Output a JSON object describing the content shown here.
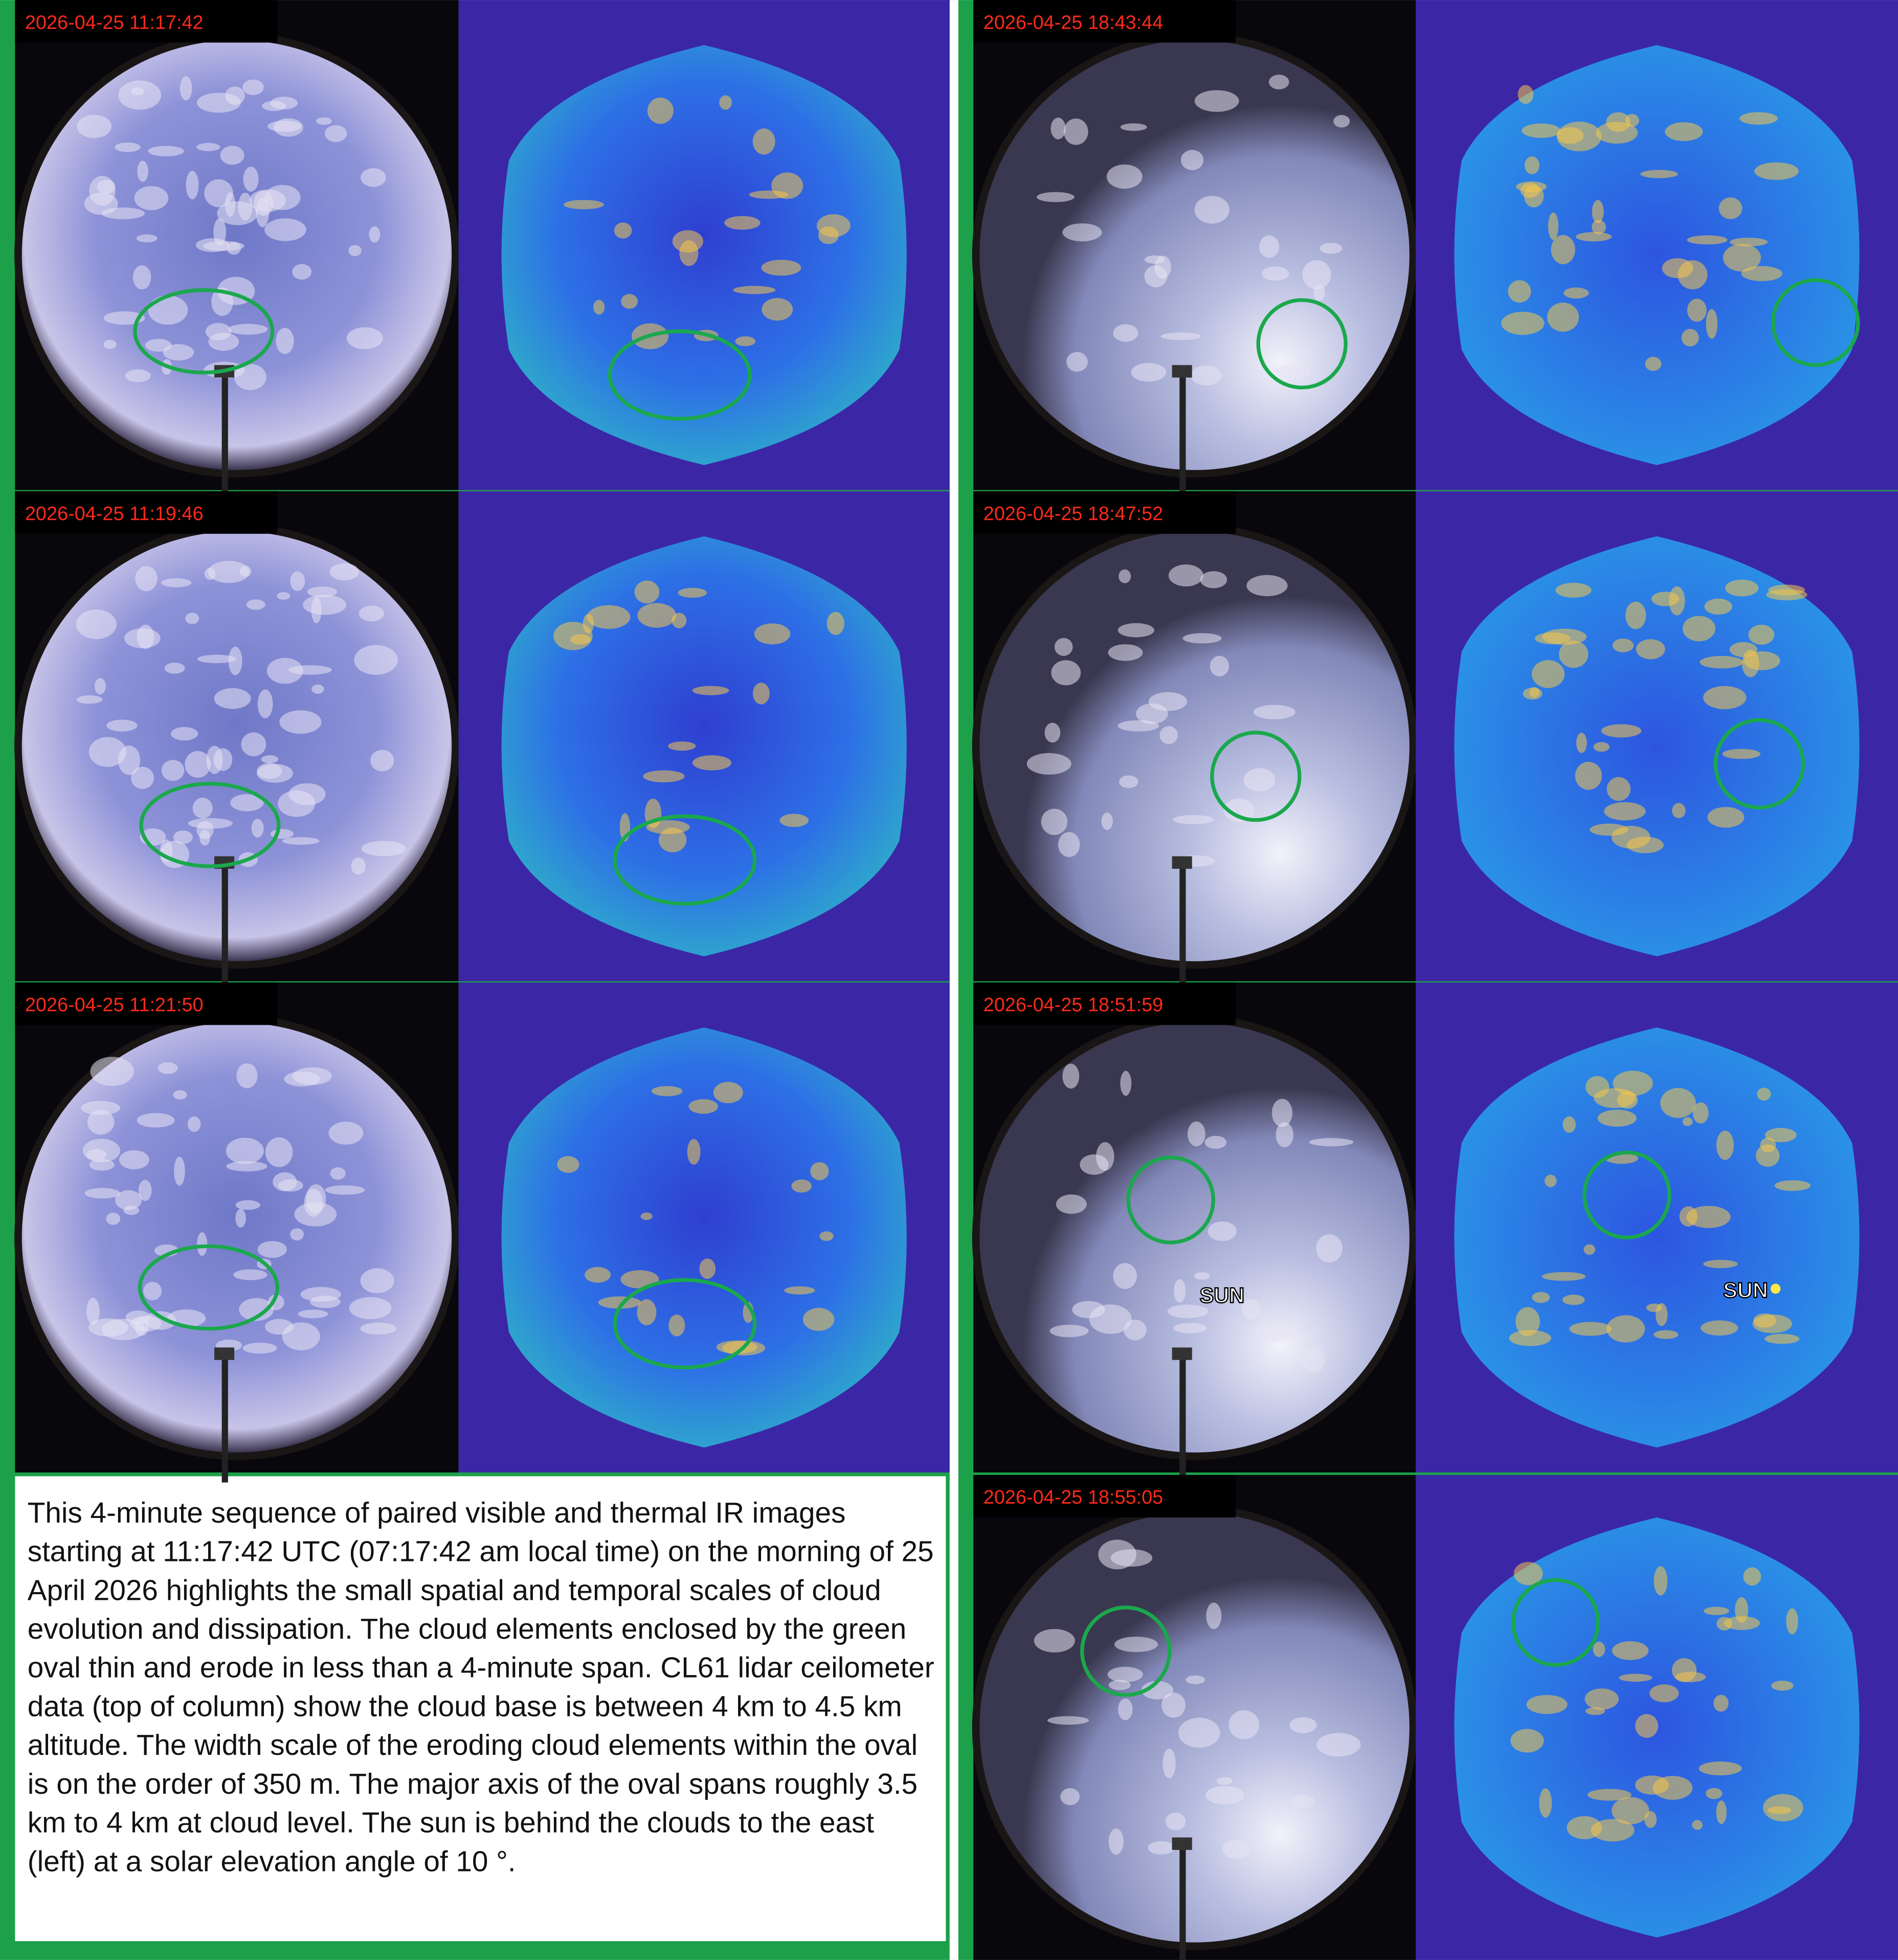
{
  "left_column": {
    "panels": [
      {
        "timestamp": "2026-04-25 11:17:42"
      },
      {
        "timestamp": "2026-04-25 11:19:46"
      },
      {
        "timestamp": "2026-04-25 11:21:50"
      }
    ]
  },
  "right_column": {
    "panels": [
      {
        "timestamp": "2026-04-25 18:43:44"
      },
      {
        "timestamp": "2026-04-25 18:47:52"
      },
      {
        "timestamp": "2026-04-25 18:51:59",
        "sun_label_visible": "SUN",
        "sun_label_ir": "SUN"
      },
      {
        "timestamp": "2026-04-25 18:55:05"
      }
    ]
  },
  "caption": "This 4-minute sequence of paired visible and thermal IR images starting at 11:17:42 UTC (07:17:42 am local time) on the morning of 25 April 2026 highlights the small spatial and temporal scales of cloud evolution and dissipation. The cloud elements enclosed by the green oval thin and erode in less than a 4-minute span. CL61 lidar ceilometer data (top of column) show the cloud base is between 4 km to 4.5 km altitude. The width scale of the eroding cloud elements within the oval is on the order of 350 m. The major axis of the oval spans roughly 3.5 km to 4 km at cloud level. The sun is behind the clouds to the east (left) at a solar elevation angle of 10 °."
}
